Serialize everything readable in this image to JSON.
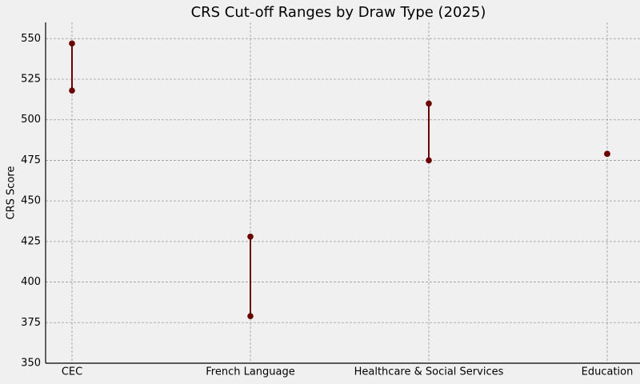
{
  "chart_data": {
    "type": "range",
    "title": "CRS Cut-off Ranges by Draw Type (2025)",
    "y_label": "CRS Score",
    "categories": [
      "CEC",
      "French Language",
      "Healthcare & Social Services",
      "Education"
    ],
    "low": [
      518,
      379,
      475,
      479
    ],
    "high": [
      547,
      428,
      510,
      479
    ],
    "color": "#6b0000",
    "ylim": [
      350,
      560
    ],
    "yticks": [
      350,
      375,
      400,
      425,
      450,
      475,
      500,
      525,
      550
    ],
    "grid": true
  }
}
